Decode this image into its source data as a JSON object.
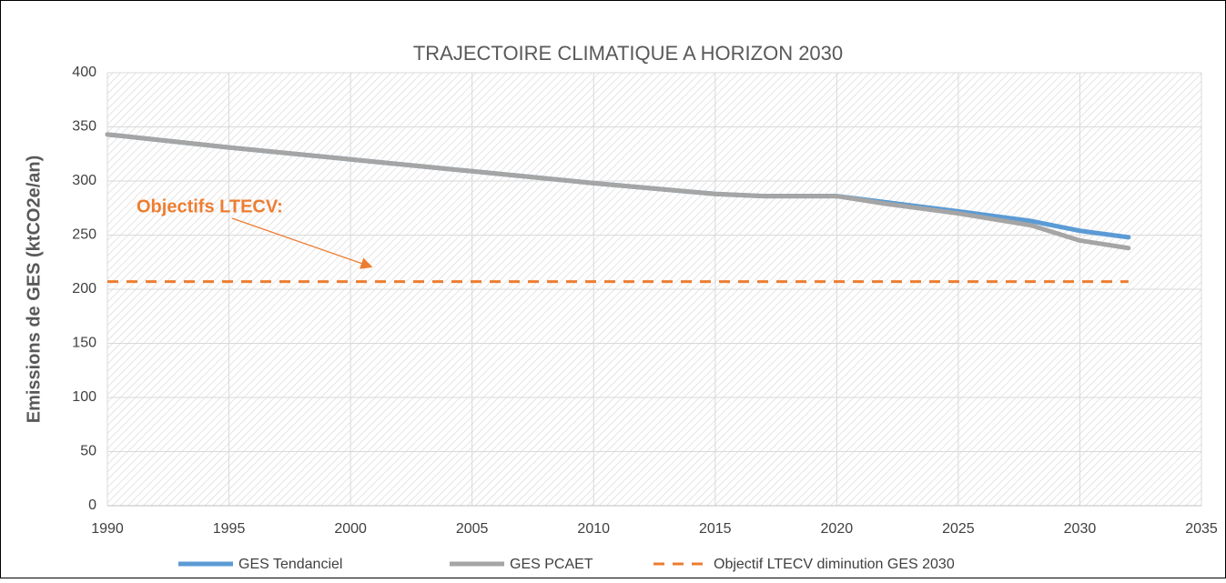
{
  "chart_data": {
    "type": "line",
    "title": "TRAJECTOIRE CLIMATIQUE A HORIZON 2030",
    "y_label": "Emissions de GES (ktCO2e/an)",
    "annotation": "Objectifs LTECV:",
    "series": [
      {
        "name": "GES Tendanciel",
        "color": "#5b9bd5",
        "dash": false,
        "x": [
          1990,
          1995,
          2000,
          2005,
          2010,
          2015,
          2017,
          2020,
          2025,
          2028,
          2030,
          2032
        ],
        "values": [
          343,
          331,
          320,
          309,
          298,
          288,
          286,
          286,
          272,
          263,
          254,
          248
        ]
      },
      {
        "name": "GES PCAET",
        "color": "#a5a5a5",
        "dash": false,
        "x": [
          1990,
          1995,
          2000,
          2005,
          2010,
          2015,
          2017,
          2020,
          2022,
          2025,
          2028,
          2030,
          2032
        ],
        "values": [
          343,
          331,
          320,
          309,
          298,
          288,
          286,
          286,
          279,
          270,
          259,
          245,
          238
        ]
      },
      {
        "name": "Objectif LTECV diminution GES 2030",
        "color": "#ed7d31",
        "dash": true,
        "x": [
          1990,
          2032
        ],
        "values": [
          207,
          207
        ]
      }
    ],
    "xlim": [
      1990,
      2035
    ],
    "xticks": [
      1990,
      1995,
      2000,
      2005,
      2010,
      2015,
      2020,
      2025,
      2030,
      2035
    ],
    "ylim": [
      0,
      400
    ],
    "yticks": [
      0,
      50,
      100,
      150,
      200,
      250,
      300,
      350,
      400
    ],
    "grid": true
  }
}
